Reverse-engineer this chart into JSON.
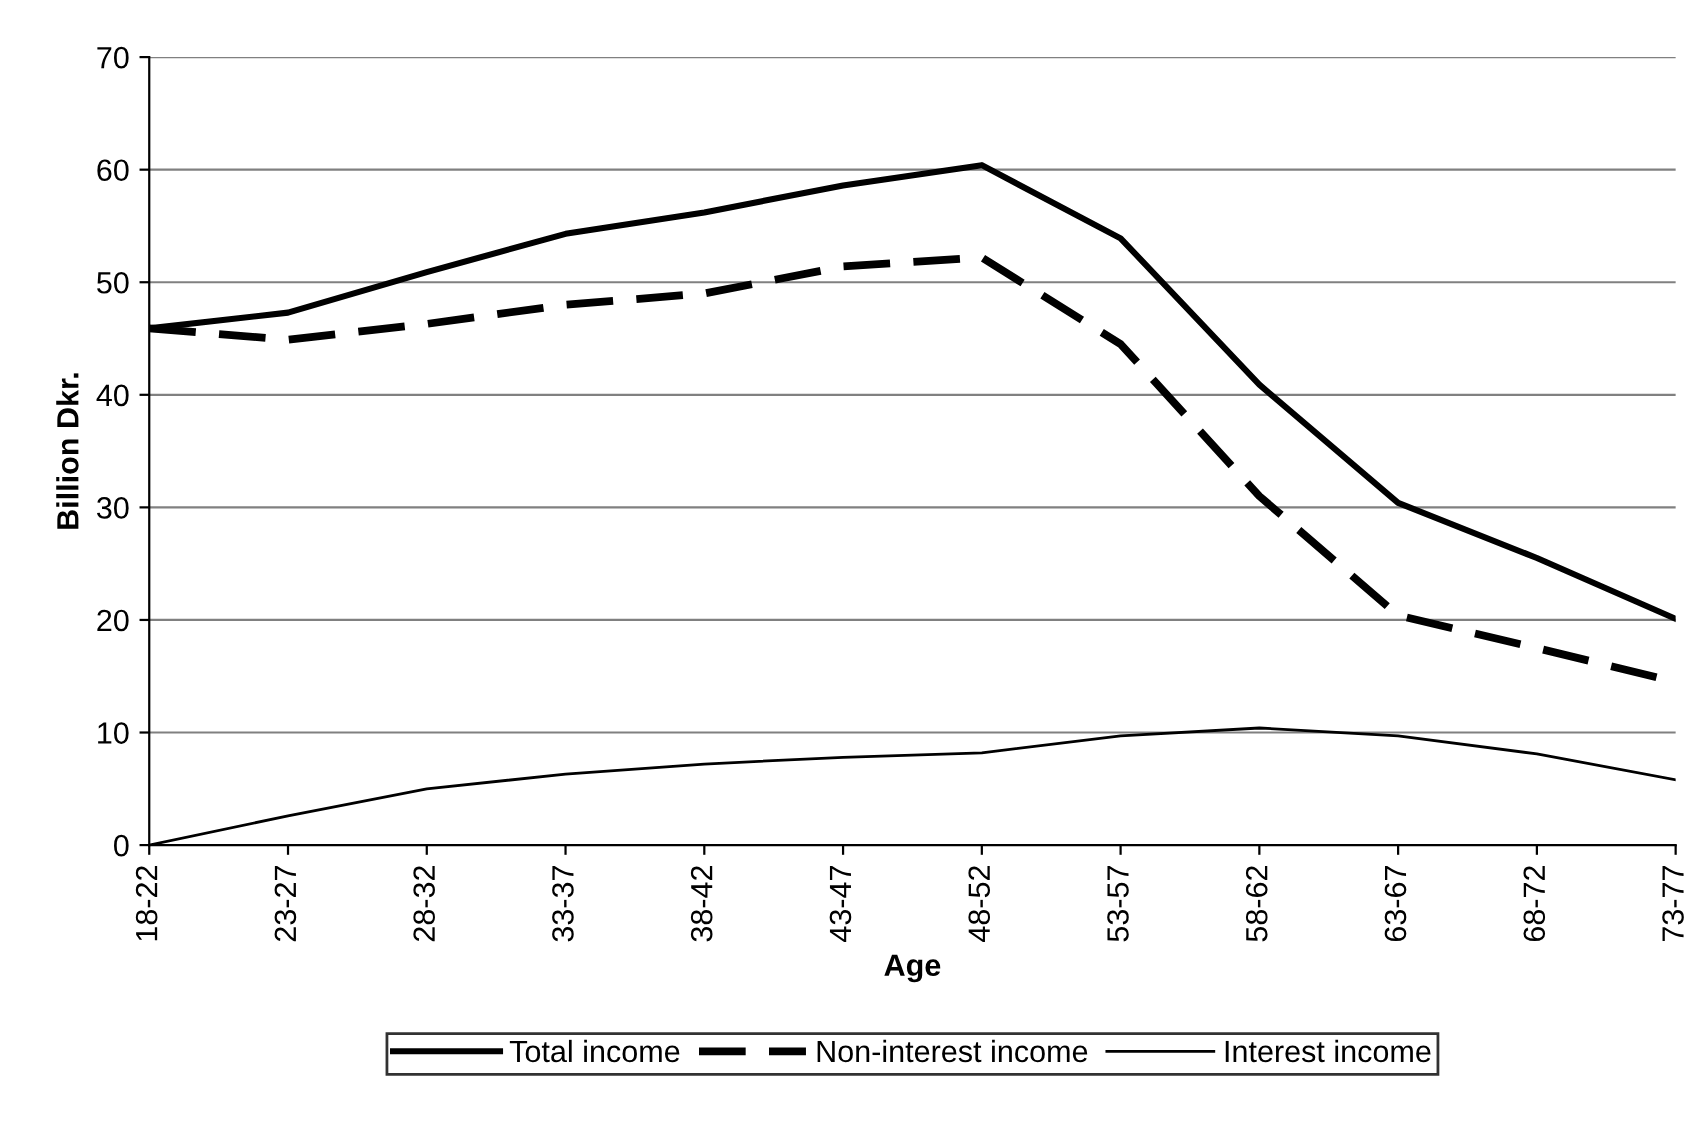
{
  "chart_data": {
    "type": "line",
    "xlabel": "Age",
    "ylabel": "Billion Dkr.",
    "categories": [
      "18-22",
      "23-27",
      "28-32",
      "33-37",
      "38-42",
      "43-47",
      "48-52",
      "53-57",
      "58-62",
      "63-67",
      "68-72",
      "73-77"
    ],
    "series": [
      {
        "name": "Total income",
        "color": "#000000",
        "line_style": "solid",
        "values": [
          45.9,
          47.3,
          50.9,
          54.3,
          56.2,
          58.6,
          60.4,
          53.9,
          40.9,
          30.4,
          25.5,
          20.1
        ]
      },
      {
        "name": "Non-interest income",
        "color": "#000000",
        "line_style": "dashed",
        "values": [
          45.9,
          44.9,
          46.3,
          48.0,
          49.0,
          51.4,
          52.2,
          44.5,
          31.0,
          20.4,
          17.5,
          14.5
        ]
      },
      {
        "name": "Interest income",
        "color": "#000000",
        "line_style": "solid",
        "values": [
          0,
          2.6,
          5.0,
          6.3,
          7.2,
          7.8,
          8.2,
          9.7,
          10.4,
          9.7,
          8.1,
          5.8
        ]
      }
    ],
    "ylim": [
      0,
      70
    ],
    "yticks": [
      0,
      10,
      20,
      30,
      40,
      50,
      60,
      70
    ],
    "grid": "y",
    "legend": "bottom",
    "marker": "none"
  }
}
